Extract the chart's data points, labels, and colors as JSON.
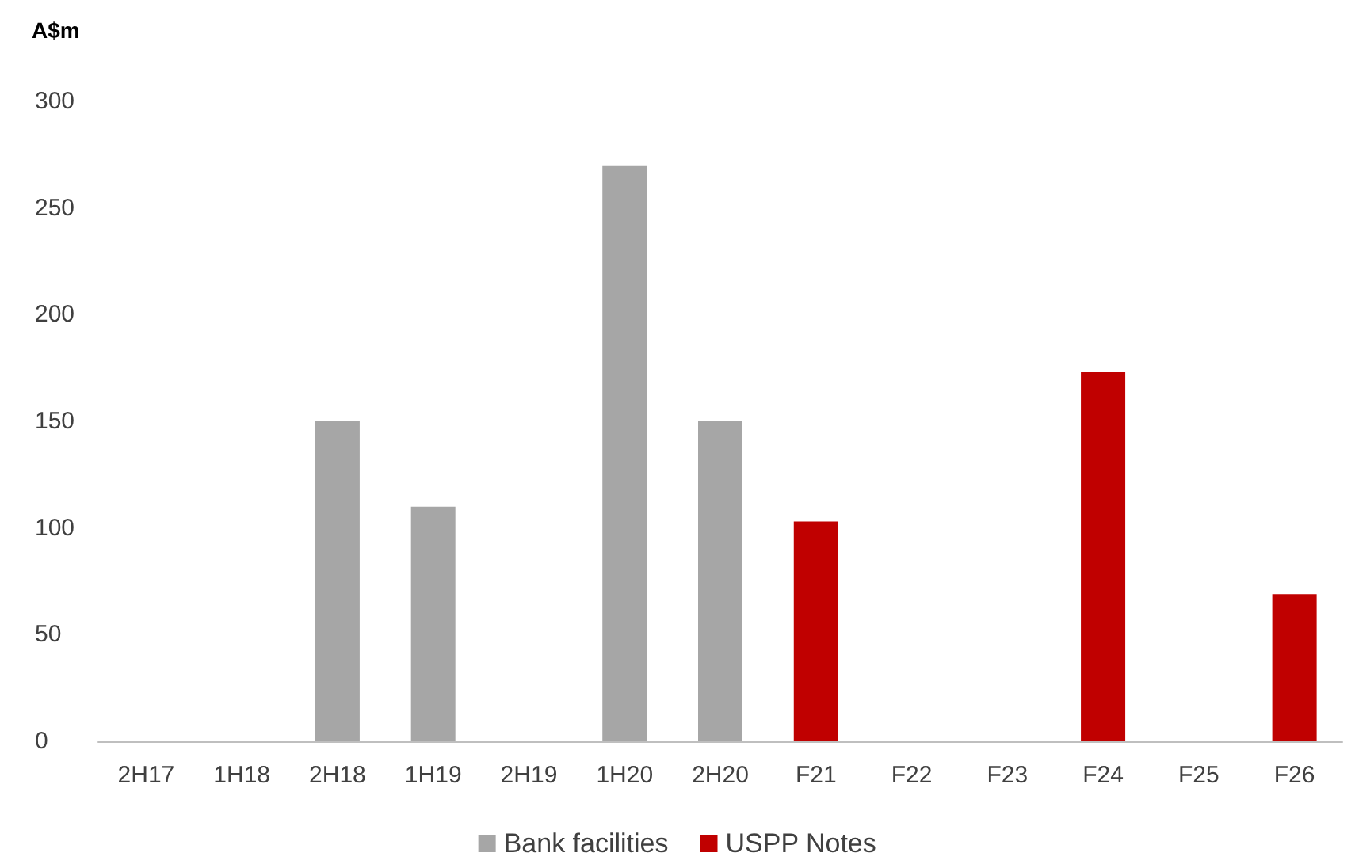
{
  "chart_data": {
    "type": "bar",
    "ylabel": "A$m",
    "categories": [
      "2H17",
      "1H18",
      "2H18",
      "1H19",
      "2H19",
      "1H20",
      "2H20",
      "F21",
      "F22",
      "F23",
      "F24",
      "F25",
      "F26"
    ],
    "series": [
      {
        "name": "Bank facilities",
        "color": "#a6a6a6",
        "values": [
          null,
          null,
          150,
          110,
          null,
          270,
          150,
          null,
          null,
          null,
          null,
          null,
          null
        ]
      },
      {
        "name": "USPP Notes",
        "color": "#c00000",
        "values": [
          null,
          null,
          null,
          null,
          null,
          null,
          null,
          103,
          null,
          null,
          173,
          null,
          69
        ]
      }
    ],
    "stacked": true,
    "ylim": [
      0,
      300
    ],
    "yticks": [
      0,
      50,
      100,
      150,
      200,
      250,
      300
    ],
    "grid": false,
    "legend": "bottom"
  }
}
